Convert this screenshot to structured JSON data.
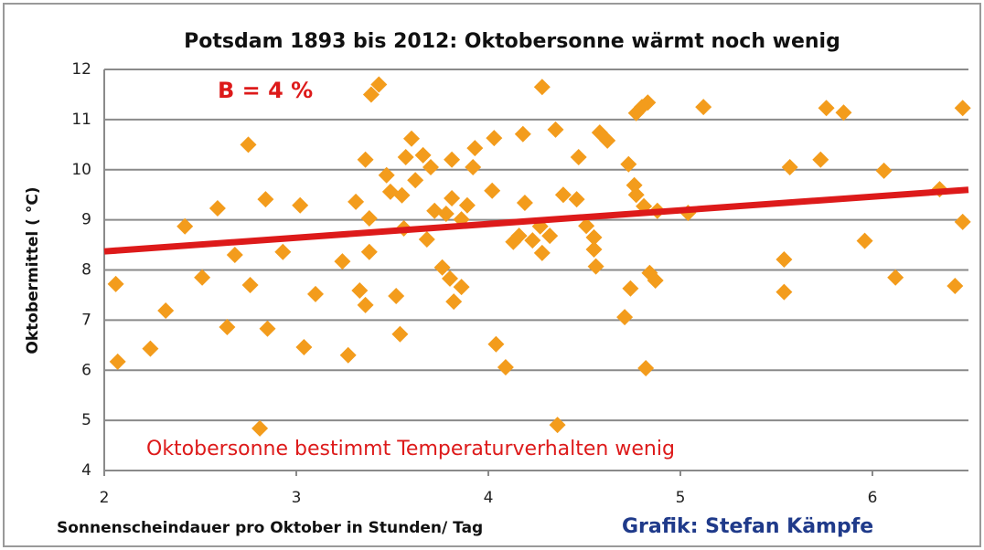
{
  "chart_data": {
    "type": "scatter",
    "title": "Potsdam 1893 bis 2012: Oktobersonne wärmt noch wenig",
    "x_label": "Sonnenscheindauer pro Oktober in Stunden/ Tag",
    "y_label": "Oktobermittel ( °C)",
    "annotations": [
      "B = 4 %",
      "Oktobersonne bestimmt Temperaturverhalten wenig",
      "Grafik: Stefan Kämpfe"
    ],
    "color": "#f39c1c",
    "trend": {
      "color": "#dd1a1a",
      "x": [
        2,
        6.5
      ],
      "y": [
        8.37,
        9.6
      ]
    },
    "x": [
      2.06,
      2.07,
      2.24,
      2.32,
      2.42,
      2.51,
      2.59,
      2.64,
      2.68,
      2.75,
      2.76,
      2.81,
      2.84,
      2.85,
      2.93,
      3.02,
      3.04,
      3.1,
      3.24,
      3.27,
      3.31,
      3.33,
      3.36,
      3.36,
      3.38,
      3.38,
      3.39,
      3.43,
      3.47,
      3.49,
      3.52,
      3.54,
      3.55,
      3.56,
      3.57,
      3.6,
      3.62,
      3.66,
      3.68,
      3.7,
      3.72,
      3.76,
      3.78,
      3.8,
      3.81,
      3.81,
      3.82,
      3.86,
      3.86,
      3.89,
      3.92,
      3.93,
      4.02,
      4.03,
      4.04,
      4.09,
      4.13,
      4.16,
      4.18,
      4.19,
      4.23,
      4.27,
      4.28,
      4.28,
      4.32,
      4.35,
      4.36,
      4.39,
      4.46,
      4.47,
      4.51,
      4.55,
      4.55,
      4.56,
      4.58,
      4.62,
      4.71,
      4.73,
      4.74,
      4.76,
      4.77,
      4.77,
      4.8,
      4.81,
      4.82,
      4.83,
      4.84,
      4.87,
      4.88,
      5.04,
      5.12,
      5.54,
      5.54,
      5.57,
      5.73,
      5.76,
      5.85,
      5.96,
      6.06,
      6.12,
      6.35,
      6.43,
      6.47,
      6.47
    ],
    "y": [
      7.72,
      6.17,
      6.43,
      7.19,
      8.87,
      7.85,
      9.23,
      6.86,
      8.3,
      10.5,
      7.7,
      4.84,
      9.41,
      6.83,
      8.36,
      9.29,
      6.46,
      7.52,
      8.17,
      6.3,
      9.36,
      7.59,
      10.2,
      7.3,
      8.36,
      9.03,
      11.5,
      11.7,
      9.89,
      9.56,
      7.48,
      6.72,
      9.49,
      8.83,
      10.25,
      10.62,
      9.79,
      10.29,
      8.61,
      10.05,
      9.18,
      8.05,
      9.12,
      7.83,
      10.2,
      9.43,
      7.37,
      7.66,
      9.01,
      9.29,
      10.05,
      10.43,
      9.58,
      10.63,
      6.52,
      6.06,
      8.56,
      8.68,
      10.71,
      9.34,
      8.59,
      8.87,
      11.65,
      8.34,
      8.68,
      10.8,
      4.91,
      9.5,
      9.41,
      10.25,
      8.88,
      8.41,
      8.65,
      8.07,
      10.74,
      10.58,
      7.06,
      10.11,
      7.63,
      9.69,
      9.5,
      11.13,
      11.25,
      9.27,
      6.04,
      11.34,
      7.94,
      7.79,
      9.18,
      9.14,
      11.25,
      8.21,
      7.56,
      10.05,
      10.2,
      11.23,
      11.14,
      8.58,
      9.98,
      7.85,
      9.61,
      7.68,
      8.96,
      11.23
    ],
    "xlim": [
      2,
      6.5
    ],
    "ylim": [
      4,
      12
    ],
    "xticks": [
      2,
      3,
      4,
      5,
      6
    ],
    "yticks": [
      4,
      5,
      6,
      7,
      8,
      9,
      10,
      11,
      12
    ],
    "grid": true
  }
}
